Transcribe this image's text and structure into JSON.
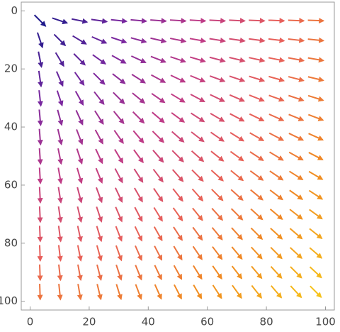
{
  "chart_data": {
    "type": "vector",
    "x": [
      3.33,
      10,
      16.67,
      23.33,
      30,
      36.67,
      43.33,
      50,
      56.67,
      63.33,
      70,
      76.67,
      83.33,
      90,
      96.67
    ],
    "y": [
      3.33,
      10,
      16.67,
      23.33,
      30,
      36.67,
      43.33,
      50,
      56.67,
      63.33,
      70,
      76.67,
      83.33,
      90,
      96.67
    ],
    "colors": [
      "#1f1a8c",
      "#7a28a0",
      "#c03c86",
      "#e8605a",
      "#f08a22",
      "#f6c21a"
    ],
    "xlim": [
      -3,
      103
    ],
    "ylim": [
      -3,
      103
    ],
    "y_inverted": true,
    "xticks": [
      0,
      20,
      40,
      60,
      80,
      100
    ],
    "yticks": [
      0,
      20,
      40,
      60,
      80,
      100
    ]
  }
}
